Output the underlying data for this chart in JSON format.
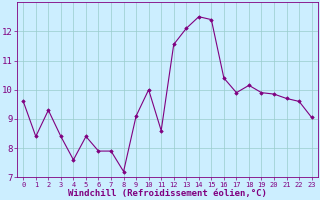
{
  "x": [
    0,
    1,
    2,
    3,
    4,
    5,
    6,
    7,
    8,
    9,
    10,
    11,
    12,
    13,
    14,
    15,
    16,
    17,
    18,
    19,
    20,
    21,
    22,
    23
  ],
  "y": [
    9.6,
    8.4,
    9.3,
    8.4,
    7.6,
    8.4,
    7.9,
    7.9,
    7.2,
    9.1,
    10.0,
    8.6,
    11.55,
    12.1,
    12.5,
    12.4,
    10.4,
    9.9,
    10.15,
    9.9,
    9.85,
    9.7,
    9.6,
    9.05
  ],
  "line_color": "#800080",
  "marker_color": "#800080",
  "bg_color": "#cceeff",
  "grid_color": "#99cccc",
  "xlabel": "Windchill (Refroidissement éolien,°C)",
  "ylim": [
    7,
    13
  ],
  "xlim": [
    -0.5,
    23.5
  ],
  "yticks": [
    7,
    8,
    9,
    10,
    11,
    12
  ],
  "xticks": [
    0,
    1,
    2,
    3,
    4,
    5,
    6,
    7,
    8,
    9,
    10,
    11,
    12,
    13,
    14,
    15,
    16,
    17,
    18,
    19,
    20,
    21,
    22,
    23
  ],
  "tick_color": "#800080",
  "label_color": "#800080",
  "font_size_tick_x": 5.0,
  "font_size_tick_y": 6.5,
  "font_size_label": 6.5
}
